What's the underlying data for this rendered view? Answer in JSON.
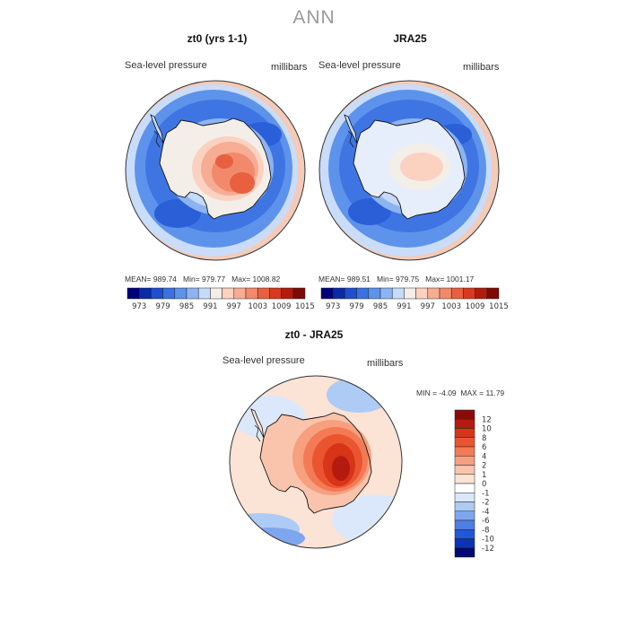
{
  "figure": {
    "title": "ANN"
  },
  "panels": [
    {
      "title": "zt0 (yrs 1-1)",
      "left_label": "Sea-level pressure",
      "right_label": "millibars",
      "stats": {
        "mean_label": "MEAN=",
        "mean": "989.74",
        "min_label": "Min=",
        "min": "979.77",
        "max_label": "Max=",
        "max": "1008.82"
      }
    },
    {
      "title": "JRA25",
      "left_label": "Sea-level pressure",
      "right_label": "millibars",
      "stats": {
        "mean_label": "MEAN=",
        "mean": "989.51",
        "min_label": "Min=",
        "min": "979.75",
        "max_label": "Max=",
        "max": "1001.17"
      }
    }
  ],
  "diff_panel": {
    "title": "zt0 - JRA25",
    "left_label": "Sea-level pressure",
    "right_label": "millibars",
    "stats": {
      "min_label": "MIN =",
      "min": "-4.09",
      "max_label": "MAX =",
      "max": "11.79"
    }
  },
  "chart_data": [
    {
      "type": "heatmap",
      "title": "zt0 (yrs 1-1)",
      "variable": "Sea-level pressure",
      "units": "millibars",
      "projection": "south polar stereographic",
      "mean": 989.74,
      "min": 979.77,
      "max": 1008.82,
      "colorbar_ticks": [
        "973",
        "979",
        "985",
        "991",
        "997",
        "1003",
        "1009",
        "1015"
      ],
      "colorbar_colors": [
        "#00007a",
        "#0b2aa6",
        "#1f4fcf",
        "#3a72e0",
        "#5d93ea",
        "#8db4f2",
        "#c6dafa",
        "#f4eee9",
        "#fbd1c0",
        "#f7ad93",
        "#f2896a",
        "#e8603f",
        "#d83a1f",
        "#b31b0d",
        "#7e0a06"
      ]
    },
    {
      "type": "heatmap",
      "title": "JRA25",
      "variable": "Sea-level pressure",
      "units": "millibars",
      "projection": "south polar stereographic",
      "mean": 989.51,
      "min": 979.75,
      "max": 1001.17,
      "colorbar_ticks": [
        "973",
        "979",
        "985",
        "991",
        "997",
        "1003",
        "1009",
        "1015"
      ],
      "colorbar_colors": [
        "#00007a",
        "#0b2aa6",
        "#1f4fcf",
        "#3a72e0",
        "#5d93ea",
        "#8db4f2",
        "#c6dafa",
        "#f4eee9",
        "#fbd1c0",
        "#f7ad93",
        "#f2896a",
        "#e8603f",
        "#d83a1f",
        "#b31b0d",
        "#7e0a06"
      ]
    },
    {
      "type": "heatmap",
      "title": "zt0 - JRA25",
      "variable": "Sea-level pressure",
      "units": "millibars",
      "projection": "south polar stereographic",
      "min": -4.09,
      "max": 11.79,
      "colorbar_ticks": [
        "12",
        "10",
        "8",
        "6",
        "4",
        "2",
        "1",
        "0",
        "-1",
        "-2",
        "-4",
        "-6",
        "-8",
        "-10",
        "-12"
      ],
      "colorbar_colors": [
        "#8a0c08",
        "#b51a10",
        "#d73418",
        "#ea5530",
        "#f37a55",
        "#f6a080",
        "#fac4ac",
        "#fbe3d6",
        "#ffffff",
        "#dbe8fb",
        "#aecbf5",
        "#7ea6ee",
        "#4d7fe4",
        "#2158d8",
        "#0d34b0",
        "#020a72"
      ]
    }
  ]
}
